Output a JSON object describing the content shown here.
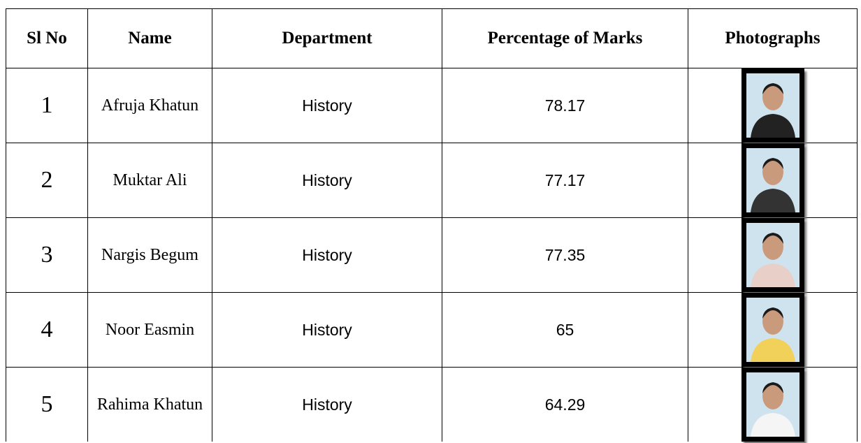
{
  "table": {
    "header": [
      "Sl No",
      "Name",
      "Department",
      "Percentage of Marks",
      "Photographs"
    ],
    "rows": [
      [
        "1",
        "Afruja Khatun",
        "History",
        "78.17"
      ],
      [
        "2",
        "Muktar Ali",
        "History",
        "77.17"
      ],
      [
        "3",
        "Nargis Begum",
        "History",
        "77.35"
      ],
      [
        "4",
        "Noor Easmin",
        "History",
        "65"
      ],
      [
        "5",
        "Rahima Khatun",
        "History",
        "64.29"
      ]
    ]
  }
}
